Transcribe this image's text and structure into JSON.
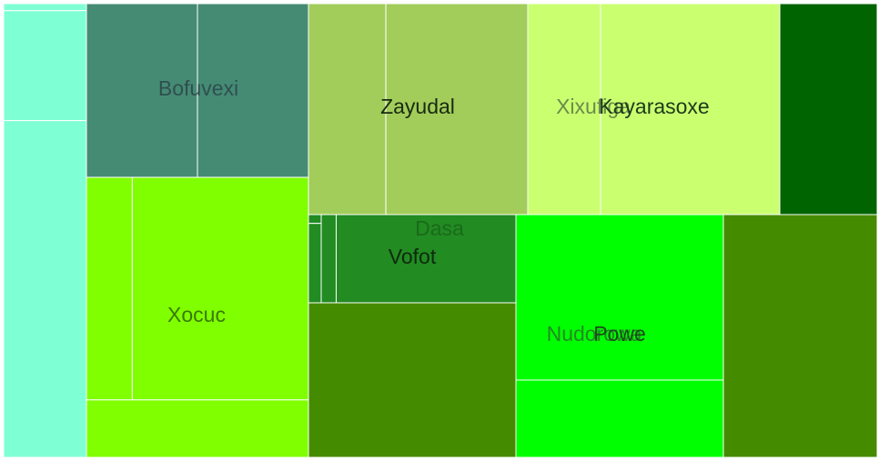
{
  "chart_data": {
    "type": "treemap",
    "title": "",
    "groups": [
      {
        "name": "",
        "color": "#7fffd4",
        "values": [
          3,
          47,
          144
        ]
      },
      {
        "name": "Bofuvexi",
        "color": "#458b74",
        "values": [
          48,
          48
        ]
      },
      {
        "name": "Xocuc",
        "color": "#7fff00",
        "values": [
          32,
          123,
          40
        ]
      },
      {
        "name": "Zayudal",
        "color": "#a2cd5a",
        "values": [
          36,
          66
        ]
      },
      {
        "name": "Dasa",
        "color": "#228b22",
        "values": [
          2,
          18
        ]
      },
      {
        "name": "Vofot",
        "color": "#228b22",
        "values": [
          3,
          36
        ]
      },
      {
        "name": "",
        "color": "#458b00",
        "values": [
          57
        ]
      },
      {
        "name": "Xixufiga",
        "color": "#caff70",
        "values": [
          12
        ]
      },
      {
        "name": "Kayarasoxe",
        "color": "#caff70",
        "values": [
          38
        ]
      },
      {
        "name": "",
        "color": "#006400",
        "values": [
          19
        ]
      },
      {
        "name": "Nudorowa",
        "color": "#00ff00",
        "values": [
          45
        ]
      },
      {
        "name": "Powe",
        "color": "#00ff00",
        "values": [
          16
        ]
      },
      {
        "name": "",
        "color": "#458b00",
        "values": [
          37
        ]
      }
    ]
  }
}
